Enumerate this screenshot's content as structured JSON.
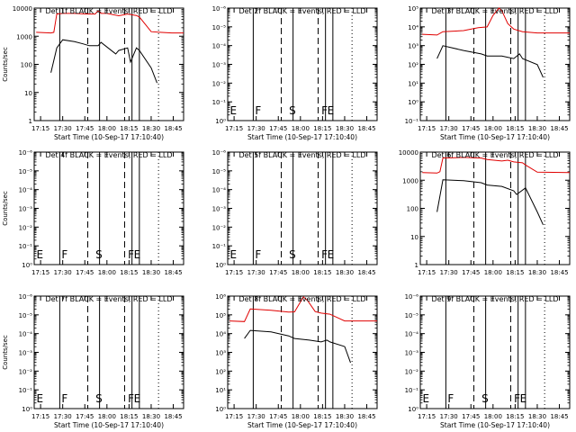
{
  "chart_data": [
    {
      "title": "Det 1f BLACK = Events, RED = LLD",
      "ylabel": "Counts/sec",
      "xlabel": "Start Time (10-Sep-17 17:10:40)",
      "ytick_labels": [
        "1",
        "10",
        "100",
        "1000",
        "10000"
      ],
      "yscale": "log",
      "ylim": [
        1,
        15000
      ],
      "xtick_labels": [
        "17:15",
        "17:30",
        "17:45",
        "18:00",
        "18:15",
        "18:30",
        "18:45"
      ],
      "xlim": [
        "17:10:40",
        "18:52"
      ],
      "markers": [],
      "series": [
        {
          "color": "red",
          "x": [
            "17:12",
            "17:22",
            "17:24",
            "17:26",
            "17:30",
            "17:38",
            "17:44",
            "17:48",
            "17:52",
            "17:54",
            "17:56",
            "18:00",
            "18:08",
            "18:14",
            "18:20",
            "18:22",
            "18:30",
            "18:36",
            "18:44",
            "18:52"
          ],
          "y": [
            1900,
            1800,
            1900,
            9000,
            9500,
            9500,
            9200,
            9000,
            9000,
            12000,
            9500,
            9500,
            7800,
            9000,
            8000,
            7000,
            2000,
            1900,
            1800,
            1800
          ]
        },
        {
          "color": "black",
          "x": [
            "17:22",
            "17:26",
            "17:30",
            "17:38",
            "17:44",
            "17:48",
            "17:54",
            "17:56",
            "18:06",
            "18:08",
            "18:14",
            "18:16",
            "18:20",
            "18:22",
            "18:30",
            "18:34"
          ],
          "y": [
            60,
            500,
            1000,
            850,
            700,
            600,
            600,
            800,
            300,
            400,
            500,
            150,
            500,
            400,
            90,
            25
          ]
        }
      ]
    },
    {
      "title": "Det 2f BLACK = Events, RED = LLD",
      "ylabel": "",
      "xlabel": "Start Time (10-Sep-17 17:10:40)",
      "ytick_labels": [
        "10⁰",
        "10⁻¹",
        "10⁻²",
        "10⁻³",
        "10⁻⁴",
        "10⁻⁵",
        "10⁻⁶"
      ],
      "yscale": "log",
      "xtick_labels": [
        "17:15",
        "17:30",
        "17:45",
        "18:00",
        "18:15",
        "18:30",
        "18:45"
      ],
      "xlim": [
        "17:10:40",
        "18:52"
      ],
      "markers": [
        "E",
        "F",
        "S",
        "F",
        "E"
      ],
      "series": []
    },
    {
      "title": "Det 3f BLACK = Events, RED = LLD",
      "ylabel": "",
      "xlabel": "Start Time (10-Sep-17 17:10:40)",
      "ytick_labels": [
        "10⁻¹",
        "10⁰",
        "10¹",
        "10²",
        "10³",
        "10⁴",
        "10⁵"
      ],
      "yscale": "log",
      "xtick_labels": [
        "17:15",
        "17:30",
        "17:45",
        "18:00",
        "18:15",
        "18:30",
        "18:45"
      ],
      "xlim": [
        "17:10:40",
        "18:52"
      ],
      "markers": [],
      "series": [
        {
          "color": "red",
          "x": [
            "17:12",
            "17:22",
            "17:26",
            "17:40",
            "17:50",
            "17:56",
            "18:00",
            "18:04",
            "18:06",
            "18:10",
            "18:14",
            "18:20",
            "18:30",
            "18:52"
          ],
          "y": [
            1600,
            1500,
            2000,
            2200,
            2800,
            3000,
            8000,
            18000,
            12000,
            4000,
            2500,
            2000,
            1800,
            1800
          ]
        },
        {
          "color": "black",
          "x": [
            "17:22",
            "17:26",
            "17:40",
            "17:52",
            "17:56",
            "18:06",
            "18:14",
            "18:18",
            "18:20",
            "18:30",
            "18:34"
          ],
          "y": [
            200,
            600,
            400,
            300,
            250,
            250,
            200,
            300,
            200,
            120,
            40
          ]
        }
      ]
    },
    {
      "title": "Det 4f BLACK = Events, RED = LLD",
      "ylabel": "Counts/sec",
      "xlabel": "",
      "ytick_labels": [
        "10⁰",
        "10⁻¹",
        "10⁻²",
        "10⁻³",
        "10⁻⁴",
        "10⁻⁵",
        "10⁻⁶"
      ],
      "yscale": "log",
      "xtick_labels": [
        "17:15",
        "17:30",
        "17:45",
        "18:00",
        "18:15",
        "18:30",
        "18:45"
      ],
      "xlim": [
        "17:10:40",
        "18:52"
      ],
      "markers": [
        "E",
        "F",
        "S",
        "F",
        "E"
      ],
      "series": []
    },
    {
      "title": "Det 5f BLACK = Events, RED = LLD",
      "ylabel": "",
      "xlabel": "",
      "ytick_labels": [
        "10⁰",
        "10⁻¹",
        "10⁻²",
        "10⁻³",
        "10⁻⁴",
        "10⁻⁵",
        "10⁻⁶"
      ],
      "yscale": "log",
      "xtick_labels": [
        "17:15",
        "17:30",
        "17:45",
        "18:00",
        "18:15",
        "18:30",
        "18:45"
      ],
      "xlim": [
        "17:10:40",
        "18:52"
      ],
      "markers": [
        "E",
        "F",
        "S",
        "F",
        "E"
      ],
      "series": []
    },
    {
      "title": "Det 6f BLACK = Events, RED = LLD",
      "ylabel": "",
      "xlabel": "",
      "ytick_labels": [
        "1",
        "10",
        "100",
        "1000",
        "10000"
      ],
      "yscale": "log",
      "ylim": [
        1,
        15000
      ],
      "xtick_labels": [
        "17:15",
        "17:30",
        "17:45",
        "18:00",
        "18:15",
        "18:30",
        "18:45"
      ],
      "xlim": [
        "17:10:40",
        "18:52"
      ],
      "markers": [],
      "series": [
        {
          "color": "red",
          "x": [
            "17:12",
            "17:22",
            "17:24",
            "17:26",
            "17:40",
            "17:52",
            "17:56",
            "18:06",
            "18:10",
            "18:14",
            "18:20",
            "18:22",
            "18:30",
            "18:52"
          ],
          "y": [
            2600,
            2500,
            2800,
            9000,
            9500,
            9000,
            8000,
            7000,
            7500,
            6500,
            6000,
            5000,
            2700,
            2600
          ]
        },
        {
          "color": "black",
          "x": [
            "17:22",
            "17:26",
            "17:40",
            "17:52",
            "17:56",
            "18:06",
            "18:14",
            "18:16",
            "18:22",
            "18:30",
            "18:34"
          ],
          "y": [
            90,
            1400,
            1300,
            1100,
            900,
            800,
            550,
            400,
            700,
            90,
            30
          ]
        }
      ]
    },
    {
      "title": "Det 7f BLACK = Events, RED = LLD",
      "ylabel": "Counts/sec",
      "xlabel": "Start Time (10-Sep-17 17:10:40)",
      "ytick_labels": [
        "10⁰",
        "10⁻¹",
        "10⁻²",
        "10⁻³",
        "10⁻⁴",
        "10⁻⁵",
        "10⁻⁶"
      ],
      "yscale": "log",
      "xtick_labels": [
        "17:15",
        "17:30",
        "17:45",
        "18:00",
        "18:15",
        "18:30",
        "18:45"
      ],
      "xlim": [
        "17:10:40",
        "18:52"
      ],
      "markers": [
        "E",
        "F",
        "S",
        "F",
        "E"
      ],
      "series": []
    },
    {
      "title": "Det 8f BLACK = Events, RED = LLD",
      "ylabel": "",
      "xlabel": "Start Time (10-Sep-17 17:10:40)",
      "ytick_labels": [
        "10⁰",
        "10¹",
        "10²",
        "10³",
        "10⁴",
        "10⁵",
        "10⁶"
      ],
      "yscale": "log",
      "xtick_labels": [
        "17:15",
        "17:30",
        "17:45",
        "18:00",
        "18:15",
        "18:30",
        "18:45"
      ],
      "xlim": [
        "17:10:40",
        "18:52"
      ],
      "markers": [],
      "series": [
        {
          "color": "red",
          "x": [
            "17:12",
            "17:22",
            "17:26",
            "17:40",
            "17:52",
            "17:56",
            "18:02",
            "18:05",
            "18:10",
            "18:14",
            "18:20",
            "18:30",
            "18:52"
          ],
          "y": [
            1800,
            1700,
            5000,
            4500,
            3800,
            3900,
            14000,
            10000,
            4000,
            3500,
            3200,
            1800,
            1800
          ]
        },
        {
          "color": "black",
          "x": [
            "17:22",
            "17:26",
            "17:40",
            "17:52",
            "17:56",
            "18:06",
            "18:14",
            "18:18",
            "18:20",
            "18:30",
            "18:34"
          ],
          "y": [
            400,
            800,
            700,
            500,
            400,
            350,
            300,
            350,
            300,
            200,
            50
          ]
        }
      ]
    },
    {
      "title": "Det 9f BLACK = Events, RED = LLD",
      "ylabel": "",
      "xlabel": "Start Time (10-Sep-17 17:10:40)",
      "ytick_labels": [
        "10⁰",
        "10⁻¹",
        "10⁻²",
        "10⁻³",
        "10⁻⁴",
        "10⁻⁵",
        "10⁻⁶"
      ],
      "yscale": "log",
      "xtick_labels": [
        "17:15",
        "17:30",
        "17:45",
        "18:00",
        "18:15",
        "18:30",
        "18:45"
      ],
      "xlim": [
        "17:10:40",
        "18:52"
      ],
      "markers": [
        "E",
        "F",
        "S",
        "F",
        "E"
      ],
      "series": []
    }
  ]
}
